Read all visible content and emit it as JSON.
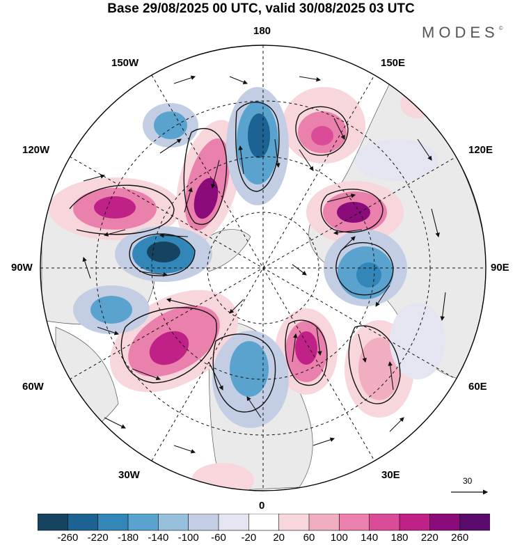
{
  "header": {
    "title": "Base 29/08/2025 00 UTC, valid 30/08/2025 03 UTC",
    "brand": "MODES",
    "brand_mark": "©"
  },
  "map": {
    "projection": "north-polar-stereographic",
    "longitude_labels": {
      "top": "180",
      "upper_left": "150W",
      "upper_right": "150E",
      "left_upper": "120W",
      "right_upper": "120E",
      "left": "90W",
      "right": "90E",
      "left_lower": "60W",
      "right_lower": "60E",
      "lower_left": "30W",
      "lower_right": "30E",
      "bottom": "0"
    },
    "reference_vector": {
      "value": "30"
    }
  },
  "colorbar": {
    "colors": [
      "#16435f",
      "#1c6292",
      "#3286b8",
      "#5aa3cf",
      "#96c0dc",
      "#c3cee4",
      "#e4e5f1",
      "#ffffff",
      "#f7d6dc",
      "#f2aec1",
      "#ea80ac",
      "#db4c98",
      "#c02187",
      "#8c0b7b",
      "#5a0a6a"
    ],
    "tick_labels": [
      "-260",
      "-220",
      "-180",
      "-140",
      "-100",
      "-60",
      "-20",
      "20",
      "60",
      "100",
      "140",
      "180",
      "220",
      "260"
    ]
  },
  "colors": {
    "positive_strong": "#c02187",
    "positive_mid": "#ea80ac",
    "positive_light": "#f7d6dc",
    "negative_strong": "#1c6292",
    "negative_mid": "#5aa3cf",
    "negative_light": "#e4e5f1",
    "land": "#eeeeee"
  }
}
